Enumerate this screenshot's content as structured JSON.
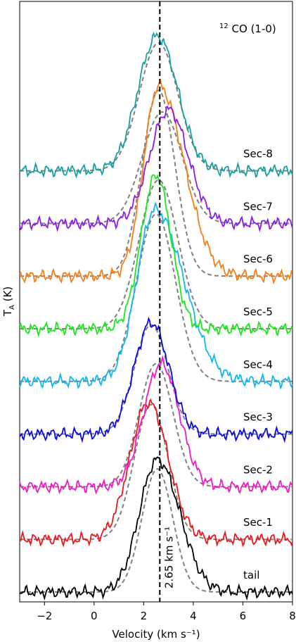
{
  "chart_data": {
    "type": "line",
    "title": "",
    "xlabel": "Velocity (km s⁻¹)",
    "ylabel": "T",
    "ylabel_sub": "A",
    "ylabel_unit": " (K)",
    "xlim": [
      -3,
      8
    ],
    "xticks": [
      -2,
      0,
      2,
      4,
      6,
      8
    ],
    "xtick_labels": [
      "−2",
      "0",
      "2",
      "4",
      "6",
      "8"
    ],
    "molecule_sup": "12",
    "molecule_label": "CO (1-0)",
    "vline": {
      "x": 2.65,
      "label": "2.65 km s⁻¹",
      "style": "dashed",
      "color": "#000000"
    },
    "fit_color": "#808080",
    "offset_step": 1,
    "series": [
      {
        "name": "tail",
        "color": "#000000",
        "offset": 0,
        "peak": 2.85,
        "center": 2.55,
        "sigma": 0.72,
        "asym_right": 1.25,
        "fit_peak": 2.65,
        "fit_center": 2.55,
        "fit_sigma": 0.62
      },
      {
        "name": "Sec-1",
        "color": "#e8191e",
        "offset": 1,
        "peak": 2.95,
        "center": 2.2,
        "sigma": 0.75,
        "asym_right": 1.05,
        "fit_peak": 2.9,
        "fit_center": 2.3,
        "fit_sigma": 0.68
      },
      {
        "name": "Sec-2",
        "color": "#ec1bc4",
        "offset": 2,
        "peak": 2.65,
        "center": 2.7,
        "sigma": 0.7,
        "asym_right": 1.05,
        "fit_peak": 2.65,
        "fit_center": 2.5,
        "fit_sigma": 0.68
      },
      {
        "name": "Sec-3",
        "color": "#0a0ad8",
        "offset": 3,
        "peak": 2.4,
        "center": 2.3,
        "sigma": 0.68,
        "asym_right": 1.05,
        "fit_peak": 2.35,
        "fit_center": 2.3,
        "fit_sigma": 0.68
      },
      {
        "name": "Sec-4",
        "color": "#12b6ee",
        "offset": 4,
        "peak": 3.7,
        "center": 2.45,
        "sigma": 0.72,
        "asym_right": 1.6,
        "fit_peak": 3.6,
        "fit_center": 2.5,
        "fit_sigma": 0.78
      },
      {
        "name": "Sec-5",
        "color": "#1ee51e",
        "offset": 5,
        "peak": 3.3,
        "center": 2.5,
        "sigma": 0.6,
        "asym_right": 1.0,
        "fit_peak": 3.2,
        "fit_center": 2.6,
        "fit_sigma": 0.78
      },
      {
        "name": "Sec-6",
        "color": "#f57f17",
        "offset": 6,
        "peak": 4.1,
        "center": 2.6,
        "sigma": 0.6,
        "asym_right": 1.7,
        "fit_peak": 4.0,
        "fit_center": 2.6,
        "fit_sigma": 0.66
      },
      {
        "name": "Sec-7",
        "color": "#8a1be8",
        "offset": 7,
        "peak": 2.45,
        "center": 3.0,
        "sigma": 0.75,
        "asym_right": 1.05,
        "fit_peak": 2.4,
        "fit_center": 2.75,
        "fit_sigma": 0.8
      },
      {
        "name": "Sec-8",
        "color": "#16a09d",
        "offset": 8,
        "peak": 2.9,
        "center": 2.55,
        "sigma": 0.78,
        "asym_right": 1.05,
        "fit_peak": 2.75,
        "fit_center": 2.6,
        "fit_sigma": 0.78
      }
    ]
  }
}
